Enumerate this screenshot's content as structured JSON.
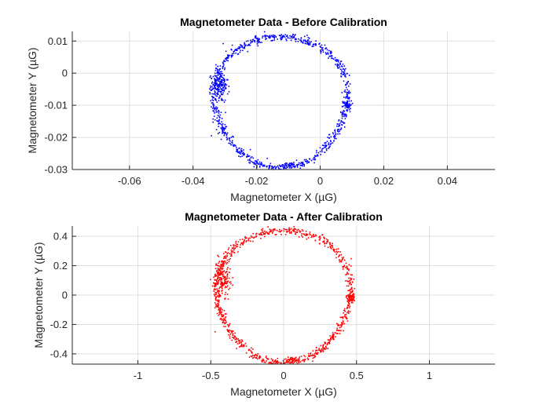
{
  "chart_data": [
    {
      "type": "scatter",
      "title": "Magnetometer Data - Before Calibration",
      "xlabel": "Magnetometer X (µG)",
      "ylabel": "Magnetometer Y (µG)",
      "xlim": [
        -0.078,
        0.055
      ],
      "ylim": [
        -0.03,
        0.013
      ],
      "xticks": [
        -0.06,
        -0.04,
        -0.02,
        0,
        0.02,
        0.04
      ],
      "xtick_labels": [
        "-0.06",
        "-0.04",
        "-0.02",
        "0",
        "0.02",
        "0.04"
      ],
      "yticks": [
        0.01,
        0,
        -0.01,
        -0.02,
        -0.03
      ],
      "ytick_labels": [
        "0.01",
        "0",
        "-0.01",
        "-0.02",
        "-0.03"
      ],
      "grid": true,
      "marker_color": "#0000ff",
      "ring": {
        "center": [
          -0.0125,
          -0.0085
        ],
        "radius_x": 0.021,
        "radius_y": 0.0205
      },
      "blobs": [
        {
          "center": [
            -0.0315,
            -0.004
          ],
          "spread": [
            0.0025,
            0.0055
          ],
          "count": 160
        },
        {
          "center": [
            0.0085,
            -0.0098
          ],
          "spread": [
            0.0015,
            0.0012
          ],
          "count": 45
        },
        {
          "center": [
            -0.0095,
            -0.0285
          ],
          "spread": [
            0.0025,
            0.0008
          ],
          "count": 40
        }
      ],
      "outliers": [
        [
          -0.0305,
          0.0092
        ],
        [
          -0.0342,
          -0.0195
        ],
        [
          -0.0041,
          0.0118
        ]
      ],
      "point_count": 900
    },
    {
      "type": "scatter",
      "title": "Magnetometer Data - After Calibration",
      "xlabel": "Magnetometer X (µG)",
      "ylabel": "Magnetometer Y (µG)",
      "xlim": [
        -1.45,
        1.45
      ],
      "ylim": [
        -0.47,
        0.47
      ],
      "xticks": [
        -1,
        -0.5,
        0,
        0.5,
        1
      ],
      "xtick_labels": [
        "-1",
        "-0.5",
        "0",
        "0.5",
        "1"
      ],
      "yticks": [
        0.4,
        0.2,
        0,
        -0.2,
        -0.4
      ],
      "ytick_labels": [
        "0.4",
        "0.2",
        "0",
        "-0.2",
        "-0.4"
      ],
      "grid": true,
      "marker_color": "#ff0000",
      "ring": {
        "center": [
          0,
          0
        ],
        "radius_x": 0.46,
        "radius_y": 0.45
      },
      "blobs": [
        {
          "center": [
            -0.42,
            0.12
          ],
          "spread": [
            0.055,
            0.12
          ],
          "count": 160
        },
        {
          "center": [
            0.46,
            -0.02
          ],
          "spread": [
            0.03,
            0.025
          ],
          "count": 45
        },
        {
          "center": [
            0.06,
            -0.44
          ],
          "spread": [
            0.06,
            0.02
          ],
          "count": 40
        }
      ],
      "outliers": [
        [
          -0.38,
          0.31
        ],
        [
          -0.47,
          -0.25
        ],
        [
          0.17,
          0.39
        ]
      ],
      "point_count": 900
    }
  ]
}
